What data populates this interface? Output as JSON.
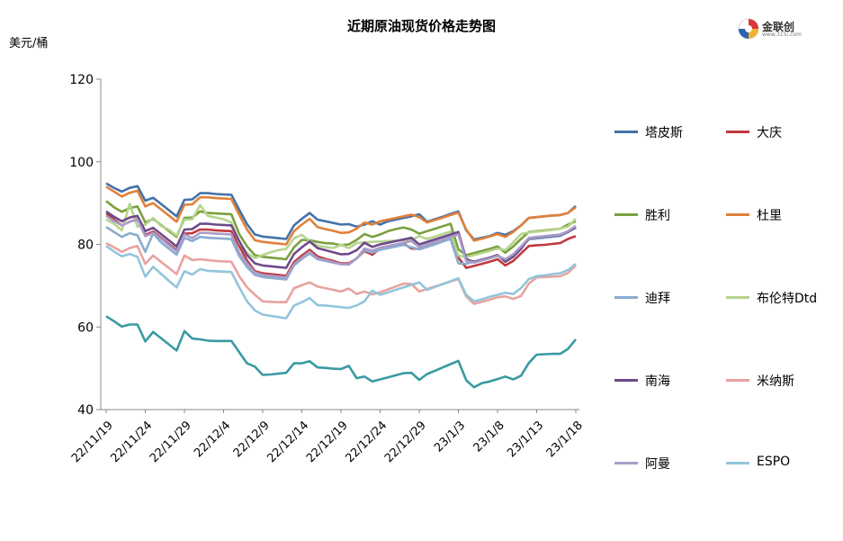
{
  "chart_data": {
    "type": "line",
    "title": "近期原油现货价格走势图",
    "ylabel": "美元/桶",
    "xlabel": "",
    "ylim": [
      40,
      120
    ],
    "yticks": [
      40,
      60,
      80,
      100,
      120
    ],
    "grid": false,
    "legend_position": "right",
    "x_tick_labels": [
      "22/11/19",
      "22/11/24",
      "22/11/29",
      "22/12/4",
      "22/12/9",
      "22/12/14",
      "22/12/19",
      "22/12/24",
      "22/12/29",
      "23/1/3",
      "23/1/8",
      "23/1/13",
      "23/1/18"
    ],
    "x_tick_indices": [
      0,
      5,
      10,
      15,
      20,
      25,
      30,
      35,
      40,
      45,
      50,
      55,
      60
    ],
    "x_count": 61,
    "series": [
      {
        "name": "塔皮斯",
        "color": "#4472a8",
        "values": [
          94.8,
          93.7,
          92.8,
          93.7,
          94.1,
          90.6,
          91.3,
          89.8,
          88.3,
          86.8,
          90.8,
          90.9,
          92.4,
          92.4,
          92.2,
          92.1,
          92.0,
          88.4,
          84.9,
          82.4,
          81.9,
          81.7,
          81.5,
          81.3,
          84.6,
          86.2,
          87.6,
          86.0,
          85.6,
          85.2,
          84.8,
          84.9,
          84.3,
          84.8,
          85.6,
          84.8,
          85.6,
          86.0,
          86.4,
          86.8,
          87.3,
          85.5,
          86.1,
          86.7,
          87.4,
          88.0,
          83.4,
          81.2,
          81.6,
          82.0,
          82.8,
          82.3,
          83.2,
          84.6,
          86.4,
          86.6,
          86.8,
          87.0,
          87.1,
          87.6,
          89.3
        ]
      },
      {
        "name": "大庆",
        "color": "#c0393f",
        "values": [
          87.5,
          86.0,
          84.6,
          85.5,
          86.1,
          82.3,
          83.1,
          81.6,
          80.1,
          78.6,
          82.6,
          82.7,
          83.6,
          83.6,
          83.4,
          83.3,
          83.2,
          79.6,
          76.1,
          73.5,
          73.0,
          72.8,
          72.6,
          72.4,
          75.7,
          77.3,
          78.7,
          77.1,
          76.5,
          76.0,
          75.4,
          75.4,
          76.6,
          78.4,
          77.5,
          79.0,
          79.4,
          79.8,
          80.2,
          79.0,
          78.9,
          79.5,
          80.1,
          80.8,
          81.4,
          76.8,
          74.3,
          74.8,
          75.3,
          75.8,
          76.4,
          74.9,
          76.0,
          77.8,
          79.6,
          79.8,
          79.9,
          80.1,
          80.3,
          81.3,
          82.0
        ]
      },
      {
        "name": "胜利",
        "color": "#7aa03f",
        "values": [
          90.5,
          89.0,
          87.9,
          88.8,
          89.2,
          85.3,
          86.2,
          84.7,
          83.3,
          81.8,
          86.4,
          86.5,
          88.0,
          87.6,
          87.5,
          87.4,
          87.3,
          82.5,
          79.5,
          77.4,
          77.0,
          76.8,
          76.6,
          76.4,
          79.3,
          81.1,
          81.0,
          80.6,
          80.3,
          80.2,
          79.8,
          80.0,
          81.1,
          82.5,
          81.8,
          82.4,
          83.2,
          83.7,
          84.1,
          83.6,
          82.6,
          83.2,
          83.8,
          84.4,
          85.0,
          78.8,
          77.4,
          77.9,
          78.4,
          78.9,
          79.5,
          78.0,
          79.5,
          81.3,
          83.0,
          83.2,
          83.4,
          83.6,
          83.8,
          84.8,
          85.6
        ]
      },
      {
        "name": "杜里",
        "color": "#e0803a",
        "values": [
          94.0,
          92.8,
          91.6,
          92.5,
          93.0,
          89.2,
          90.0,
          88.5,
          87.0,
          85.5,
          89.6,
          89.7,
          91.4,
          91.4,
          91.2,
          91.1,
          91.0,
          87.2,
          83.6,
          81.0,
          80.6,
          80.4,
          80.2,
          80.0,
          83.2,
          84.8,
          86.2,
          84.2,
          83.7,
          83.3,
          82.8,
          82.9,
          83.8,
          85.3,
          84.8,
          85.6,
          86.0,
          86.4,
          86.8,
          87.2,
          86.6,
          85.3,
          85.9,
          86.5,
          87.1,
          87.7,
          83.6,
          80.9,
          81.4,
          81.9,
          82.5,
          81.8,
          83.0,
          84.6,
          86.4,
          86.6,
          86.8,
          87.0,
          87.1,
          87.6,
          89.0
        ]
      },
      {
        "name": "迪拜",
        "color": "#8aabd0",
        "values": [
          84.2,
          83.0,
          81.8,
          82.7,
          82.2,
          78.2,
          82.7,
          80.5,
          79.0,
          77.5,
          81.6,
          80.8,
          81.8,
          81.6,
          81.5,
          81.4,
          81.3,
          77.2,
          74.5,
          72.6,
          72.1,
          71.9,
          71.7,
          71.5,
          74.9,
          76.5,
          77.8,
          76.4,
          76.0,
          75.6,
          75.2,
          75.1,
          76.6,
          78.6,
          78.0,
          78.7,
          79.1,
          79.5,
          79.9,
          79.3,
          78.8,
          79.4,
          80.0,
          80.7,
          81.3,
          75.4,
          75.3,
          75.8,
          76.3,
          76.8,
          77.4,
          75.9,
          77.0,
          79.4,
          81.2,
          81.4,
          81.6,
          81.8,
          82.0,
          83.0,
          84.0
        ]
      },
      {
        "name": "布伦特Dtd",
        "color": "#b6d48e",
        "values": [
          86.0,
          85.0,
          83.4,
          89.8,
          84.3,
          84.8,
          86.4,
          84.5,
          83.6,
          82.1,
          86.0,
          86.1,
          89.5,
          86.9,
          86.5,
          86.1,
          85.3,
          80.4,
          77.9,
          76.7,
          77.4,
          78.1,
          78.6,
          78.9,
          81.5,
          82.3,
          80.8,
          79.7,
          79.4,
          79.1,
          79.9,
          79.1,
          80.3,
          80.5,
          80.6,
          80.7,
          80.8,
          80.9,
          81.0,
          81.1,
          82.0,
          81.3,
          81.9,
          82.5,
          83.1,
          77.3,
          76.9,
          77.4,
          77.9,
          78.4,
          79.0,
          78.6,
          80.5,
          82.5,
          82.9,
          83.1,
          83.3,
          83.5,
          83.8,
          84.3,
          86.2
        ]
      },
      {
        "name": "南海",
        "color": "#6e4a8a",
        "values": [
          88.0,
          86.7,
          85.6,
          86.5,
          86.9,
          83.2,
          84.0,
          82.5,
          81.0,
          79.5,
          83.6,
          83.7,
          85.0,
          85.0,
          84.8,
          84.7,
          84.6,
          80.8,
          77.4,
          75.4,
          74.9,
          74.7,
          74.5,
          74.3,
          77.7,
          79.3,
          80.7,
          79.1,
          78.6,
          78.1,
          77.6,
          77.7,
          78.6,
          80.4,
          79.4,
          80.0,
          80.4,
          80.8,
          81.2,
          81.6,
          80.0,
          80.6,
          81.2,
          81.8,
          82.4,
          83.0,
          76.4,
          75.8,
          76.3,
          76.8,
          77.4,
          75.8,
          77.0,
          78.9,
          81.5,
          81.7,
          81.9,
          82.1,
          82.3,
          83.0,
          84.2
        ]
      },
      {
        "name": "米纳斯",
        "color": "#e8a3a0",
        "values": [
          80.3,
          79.3,
          78.2,
          79.1,
          79.6,
          75.3,
          77.3,
          75.8,
          74.3,
          72.8,
          77.3,
          76.2,
          76.4,
          76.2,
          76.0,
          75.9,
          75.8,
          72.3,
          69.6,
          67.8,
          66.2,
          66.1,
          66.0,
          66.0,
          69.4,
          70.1,
          70.8,
          69.8,
          69.4,
          69.0,
          68.6,
          69.3,
          68.0,
          68.6,
          67.9,
          68.4,
          69.1,
          69.8,
          70.5,
          70.4,
          68.6,
          69.2,
          69.8,
          70.4,
          71.0,
          71.6,
          67.4,
          65.6,
          66.1,
          66.6,
          67.2,
          67.4,
          66.8,
          67.5,
          70.5,
          72.0,
          72.1,
          72.2,
          72.3,
          73.1,
          74.9
        ]
      },
      {
        "name": "阿曼",
        "color": "#a99dc8",
        "values": [
          86.9,
          85.6,
          84.6,
          85.5,
          86.0,
          82.0,
          82.8,
          81.4,
          79.8,
          78.3,
          82.4,
          81.5,
          82.8,
          82.8,
          82.6,
          82.5,
          82.4,
          78.0,
          75.4,
          73.2,
          72.6,
          72.4,
          72.2,
          72.0,
          75.2,
          76.8,
          78.2,
          76.6,
          76.2,
          75.7,
          75.2,
          75.2,
          76.6,
          79.0,
          78.5,
          79.2,
          79.6,
          80.0,
          80.4,
          80.8,
          79.4,
          80.0,
          80.6,
          81.2,
          81.8,
          82.4,
          76.0,
          75.6,
          76.1,
          76.6,
          77.2,
          76.4,
          77.6,
          79.5,
          81.6,
          81.8,
          82.0,
          82.2,
          82.4,
          83.2,
          84.5
        ]
      },
      {
        "name": "ESPO",
        "color": "#93c5db",
        "values": [
          79.6,
          78.3,
          77.1,
          77.7,
          77.0,
          72.2,
          74.6,
          72.9,
          71.2,
          69.6,
          73.5,
          72.7,
          74.0,
          73.6,
          73.5,
          73.4,
          73.3,
          69.6,
          66.2,
          64.0,
          63.0,
          62.7,
          62.4,
          62.1,
          65.2,
          66.0,
          67.0,
          65.3,
          65.2,
          65.0,
          64.8,
          64.6,
          65.2,
          66.2,
          68.8,
          67.8,
          68.4,
          69.0,
          69.6,
          70.2,
          70.8,
          69.0,
          69.7,
          70.4,
          71.1,
          71.8,
          67.8,
          66.2,
          66.7,
          67.3,
          67.8,
          68.3,
          68.0,
          69.4,
          71.6,
          72.3,
          72.5,
          72.8,
          73.0,
          73.8,
          75.3
        ]
      },
      {
        "name": "",
        "color": "#3a9aa3",
        "values": [
          62.6,
          61.4,
          60.1,
          60.6,
          60.6,
          56.5,
          58.8,
          57.3,
          55.8,
          54.3,
          59.0,
          57.2,
          57.0,
          56.7,
          56.6,
          56.6,
          56.6,
          53.9,
          51.2,
          50.4,
          48.4,
          48.5,
          48.7,
          48.9,
          51.2,
          51.2,
          51.7,
          50.2,
          50.1,
          49.9,
          49.8,
          50.6,
          47.6,
          48.0,
          46.8,
          47.3,
          47.8,
          48.3,
          48.8,
          48.9,
          47.2,
          48.6,
          49.4,
          50.2,
          51.0,
          51.8,
          47.1,
          45.4,
          46.4,
          46.8,
          47.4,
          48.0,
          47.3,
          48.2,
          51.3,
          53.3,
          53.4,
          53.5,
          53.5,
          54.7,
          57.0
        ]
      }
    ]
  },
  "logo": {
    "text": "金联创",
    "sub": "www.315i.com"
  }
}
